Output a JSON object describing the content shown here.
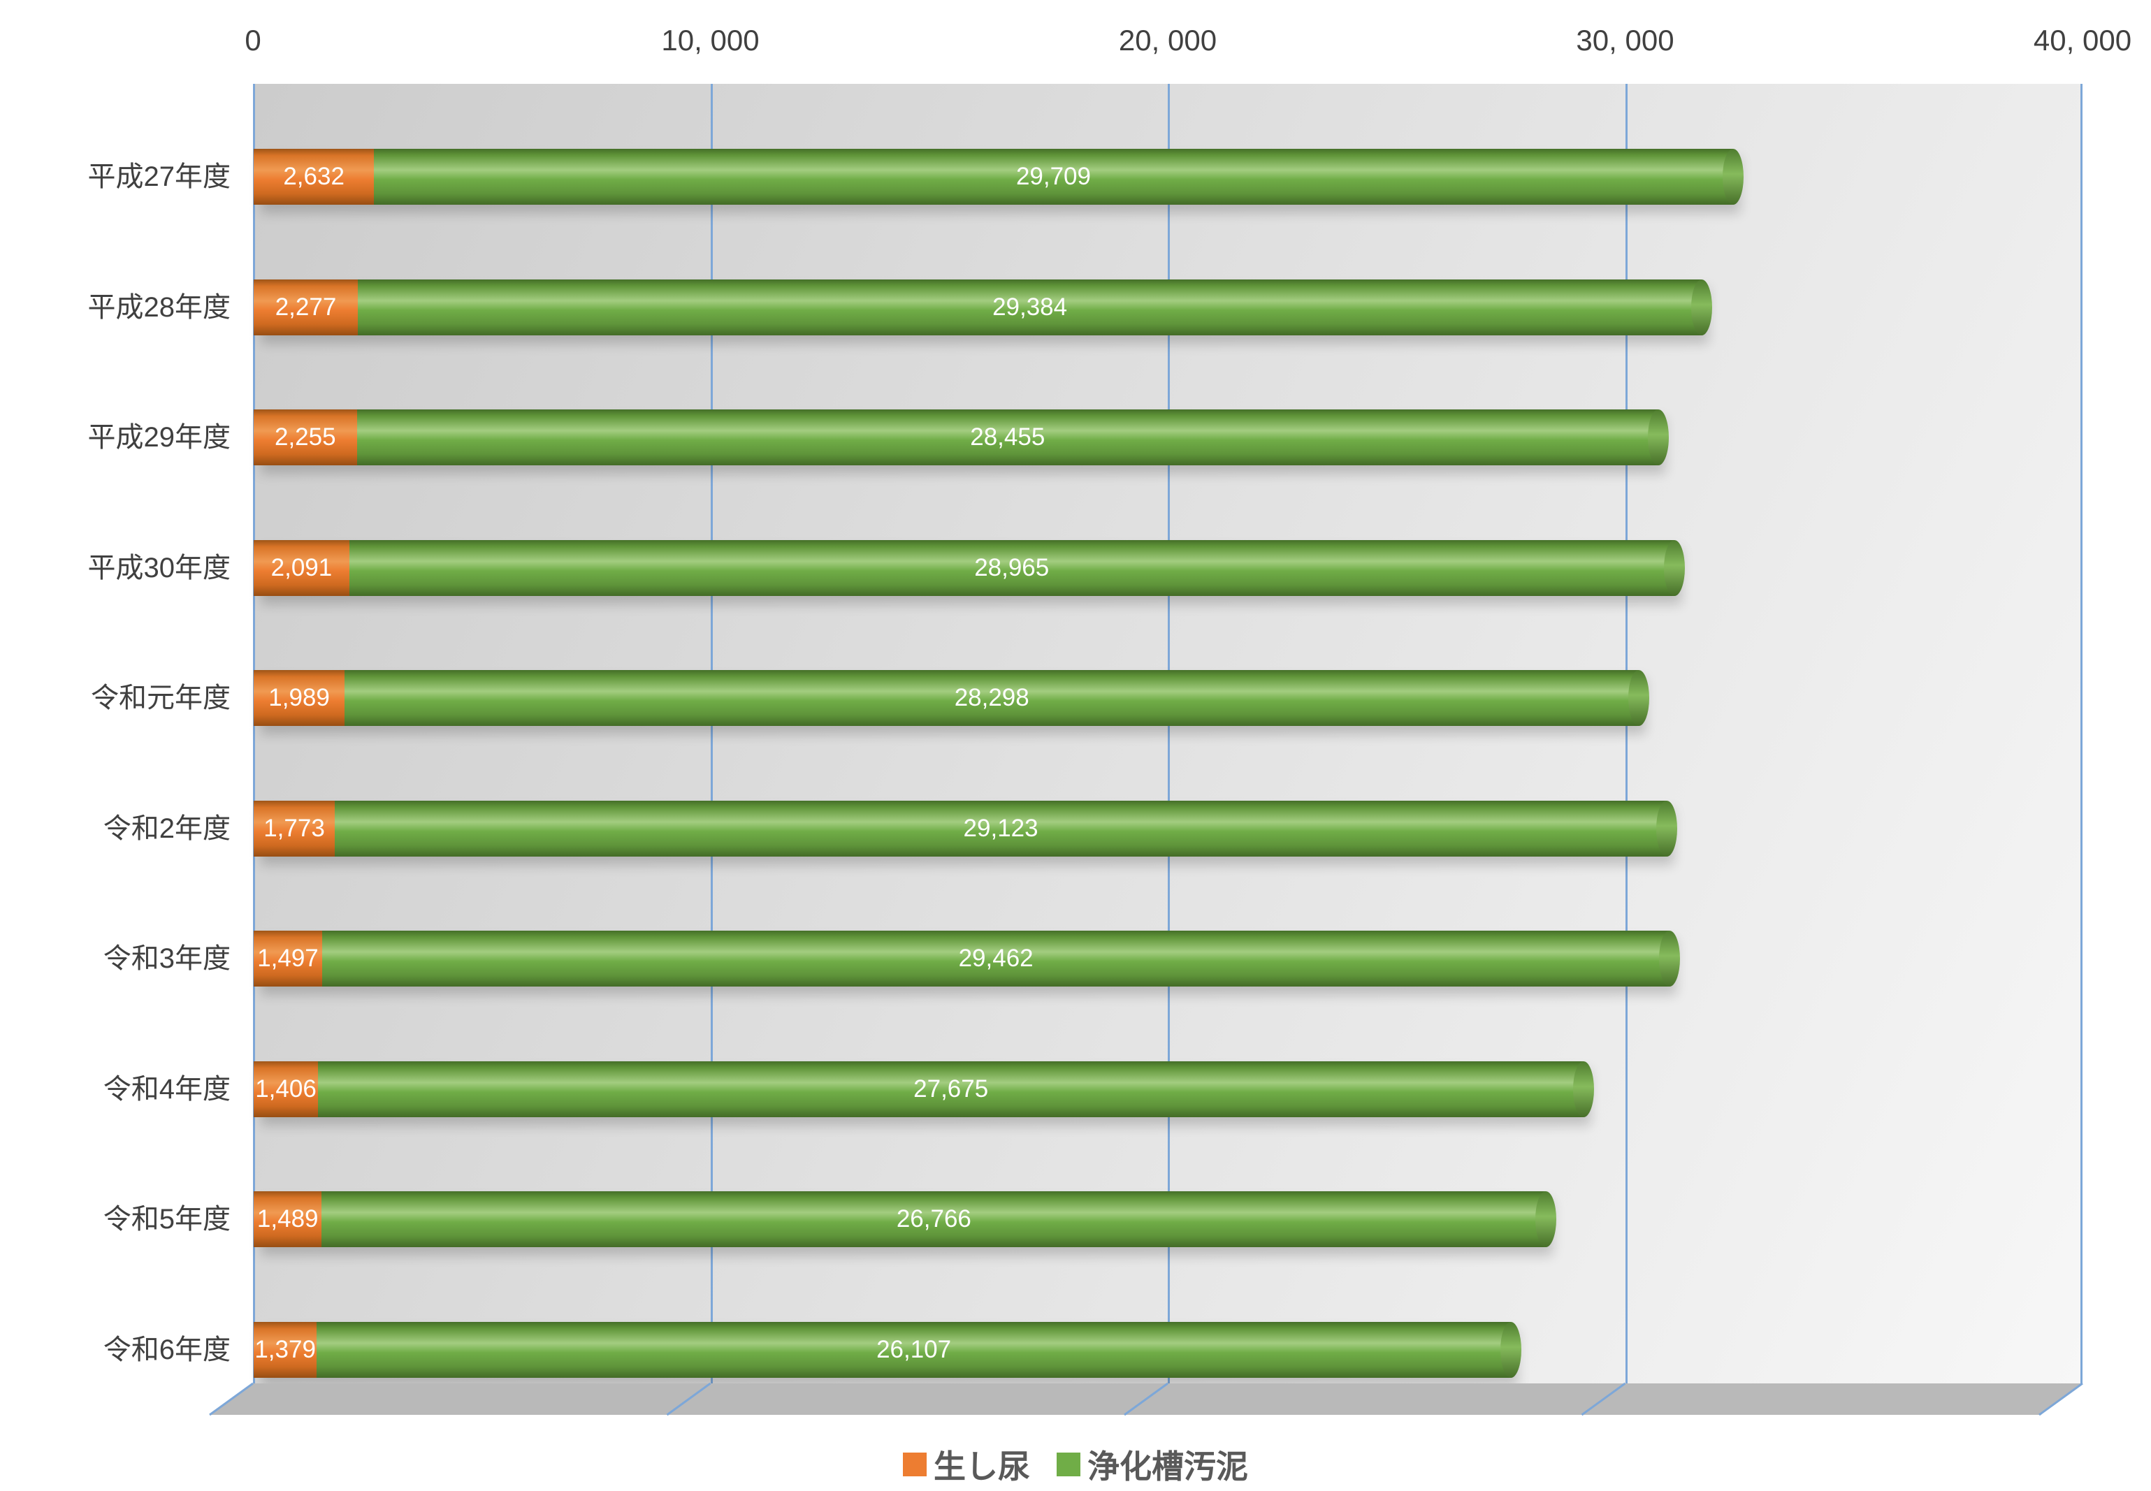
{
  "colors": {
    "background": "#ffffff",
    "axis_text": "#404040",
    "grid": "#7da7d8",
    "floor": "#b9b9b9",
    "orange": "#ED7D31",
    "green": "#70AD47",
    "legend_text": "#595959"
  },
  "chart_data": {
    "type": "bar",
    "orientation": "horizontal",
    "stacked": true,
    "title": "",
    "categories": [
      "平成27年度",
      "平成28年度",
      "平成29年度",
      "平成30年度",
      "令和元年度",
      "令和2年度",
      "令和3年度",
      "令和4年度",
      "令和5年度",
      "令和6年度"
    ],
    "series": [
      {
        "name": "生し尿",
        "color": "#ED7D31",
        "values": [
          2632,
          2277,
          2255,
          2091,
          1989,
          1773,
          1497,
          1406,
          1489,
          1379
        ],
        "labels": [
          "2,632",
          "2,277",
          "2,255",
          "2,091",
          "1,989",
          "1,773",
          "1,497",
          "1,406",
          "1,489",
          "1,379"
        ]
      },
      {
        "name": "浄化槽汚泥",
        "color": "#70AD47",
        "values": [
          29709,
          29384,
          28455,
          28965,
          28298,
          29123,
          29462,
          27675,
          26766,
          26107
        ],
        "labels": [
          "29,709",
          "29,384",
          "28,455",
          "28,965",
          "28,298",
          "29,123",
          "29,462",
          "27,675",
          "26,766",
          "26,107"
        ]
      }
    ],
    "x_axis": {
      "min": 0,
      "max": 40000,
      "position": "top",
      "tick_values": [
        0,
        10000,
        20000,
        30000,
        40000
      ],
      "tick_labels": [
        "0",
        "10, 000",
        "20, 000",
        "30, 000",
        "40, 000"
      ]
    },
    "grid": {
      "show": true,
      "color": "#7da7d8"
    },
    "legend_position": "bottom",
    "style": "3d-cylinder"
  }
}
